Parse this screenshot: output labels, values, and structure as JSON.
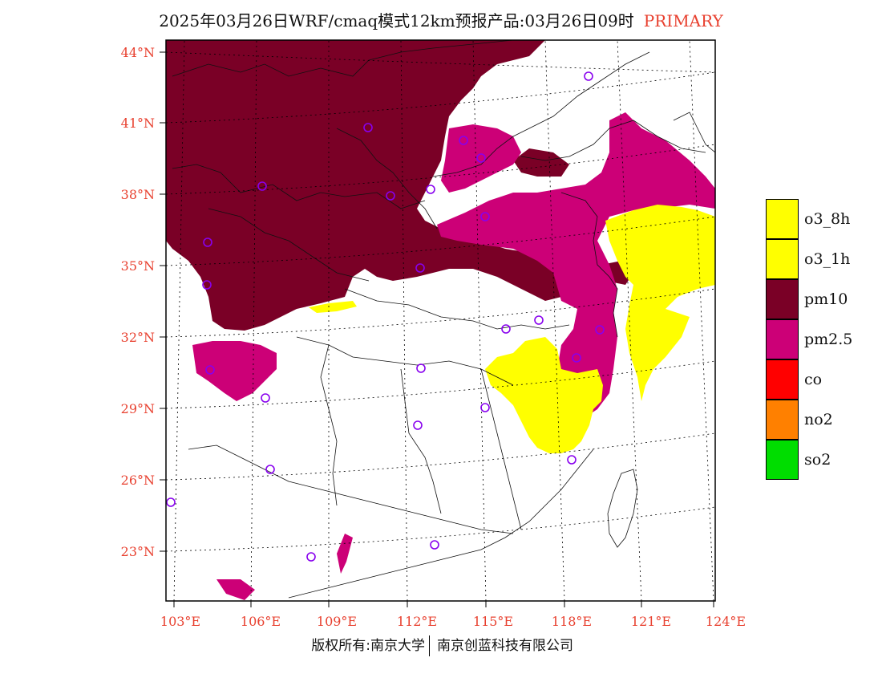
{
  "title": {
    "main": "2025年03月26日WRF/cmaq模式12km预报产品:03月26日09时",
    "tag": "PRIMARY"
  },
  "axes": {
    "lat_labels": [
      "44°N",
      "41°N",
      "38°N",
      "35°N",
      "32°N",
      "29°N",
      "26°N",
      "23°N"
    ],
    "lon_labels": [
      "103°E",
      "106°E",
      "109°E",
      "112°E",
      "115°E",
      "118°E",
      "121°E",
      "124°E"
    ],
    "label_color": "#e8402f"
  },
  "legend": [
    {
      "label": "o3_8h",
      "color": "#ffff00"
    },
    {
      "label": "o3_1h",
      "color": "#ffff00"
    },
    {
      "label": "pm10",
      "color": "#7a0026"
    },
    {
      "label": "pm2.5",
      "color": "#cc0077"
    },
    {
      "label": "co",
      "color": "#ff0000"
    },
    {
      "label": "no2",
      "color": "#ff8000"
    },
    {
      "label": "so2",
      "color": "#00dd00"
    }
  ],
  "colors": {
    "pm10": "#7a0026",
    "pm25": "#cc0077",
    "o3": "#ffff00",
    "station": "#8800ee"
  },
  "footer": {
    "left": "版权所有:南京大学",
    "right": "南京创蓝科技有限公司"
  }
}
